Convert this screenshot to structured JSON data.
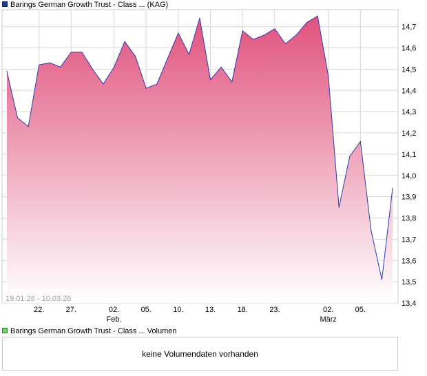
{
  "legend": {
    "price_label": "Barings German Growth Trust - Class ... (KAG)",
    "volume_label": "Barings German Growth Trust - Class ... Volumen"
  },
  "volume_panel": {
    "message": "keine Volumendaten vorhanden"
  },
  "colors": {
    "line": "#2a3bb0",
    "fill_top": "#e0527e",
    "fill_bottom": "#ffffff",
    "grid": "#d8d8d8"
  },
  "chart_data": {
    "type": "area",
    "title": "Barings German Growth Trust - Class ... (KAG)",
    "date_range": "19.01.26 - 10.03.26",
    "ylim": [
      13.4,
      14.78
    ],
    "y_ticks": [
      "13,4",
      "13,5",
      "13,6",
      "13,7",
      "13,8",
      "13,9",
      "14,0",
      "14,1",
      "14,2",
      "14,3",
      "14,4",
      "14,5",
      "14,6",
      "14,7"
    ],
    "x_ticks": [
      {
        "index": 3,
        "label": "22.",
        "sublabel": ""
      },
      {
        "index": 6,
        "label": "27.",
        "sublabel": ""
      },
      {
        "index": 10,
        "label": "02.",
        "sublabel": "Feb."
      },
      {
        "index": 13,
        "label": "05.",
        "sublabel": ""
      },
      {
        "index": 16,
        "label": "10.",
        "sublabel": ""
      },
      {
        "index": 19,
        "label": "13.",
        "sublabel": ""
      },
      {
        "index": 22,
        "label": "18.",
        "sublabel": ""
      },
      {
        "index": 25,
        "label": "23.",
        "sublabel": ""
      },
      {
        "index": 30,
        "label": "02.",
        "sublabel": "März"
      },
      {
        "index": 33,
        "label": "05.",
        "sublabel": ""
      }
    ],
    "series": [
      {
        "name": "Barings German Growth Trust - Class ... (KAG)",
        "values": [
          14.49,
          14.27,
          14.23,
          14.52,
          14.53,
          14.51,
          14.58,
          14.58,
          14.5,
          14.43,
          14.51,
          14.63,
          14.56,
          14.41,
          14.43,
          14.55,
          14.67,
          14.57,
          14.74,
          14.45,
          14.51,
          14.44,
          14.68,
          14.64,
          14.66,
          14.69,
          14.62,
          14.66,
          14.72,
          14.75,
          14.47,
          13.85,
          14.09,
          14.16,
          13.74,
          13.51,
          13.94
        ]
      }
    ]
  }
}
